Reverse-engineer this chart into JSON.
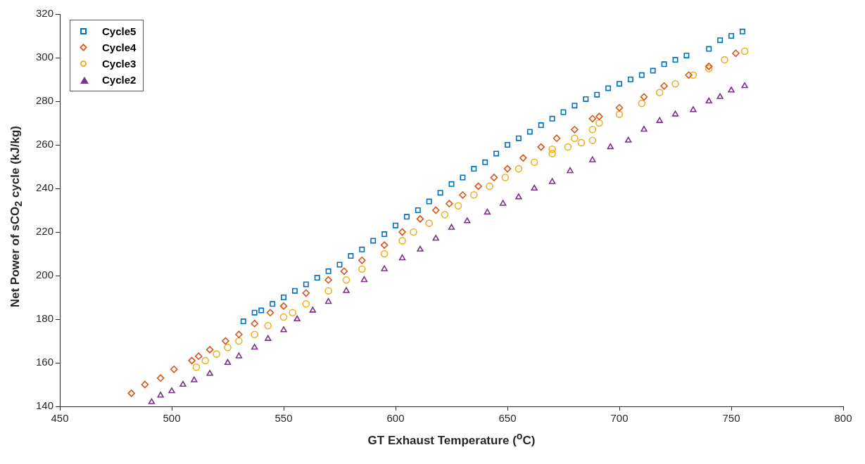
{
  "chart_data": {
    "type": "scatter",
    "xlabel": "GT Exhaust Temperature ($^{o}$C)",
    "ylabel": "Net Power of sCO$_{2}$ cycle (kJ/kg)",
    "xlim": [
      450,
      800
    ],
    "xticks": [
      450,
      500,
      550,
      600,
      650,
      700,
      750,
      800
    ],
    "ylim": [
      140,
      320
    ],
    "yticks": [
      140,
      160,
      180,
      200,
      220,
      240,
      260,
      280,
      300,
      320
    ],
    "grid": false,
    "legend": "top left",
    "series": [
      {
        "name": "Cycle5",
        "color": "#0072bd",
        "marker": "square",
        "x": [
          532,
          537,
          540,
          545,
          550,
          555,
          560,
          565,
          570,
          575,
          580,
          585,
          590,
          595,
          600,
          605,
          610,
          615,
          620,
          625,
          630,
          635,
          640,
          645,
          650,
          655,
          660,
          665,
          670,
          675,
          680,
          685,
          690,
          695,
          700,
          705,
          710,
          715,
          720,
          725,
          730,
          740,
          745,
          750,
          755
        ],
        "values": [
          179,
          183,
          184,
          187,
          190,
          193,
          196,
          199,
          202,
          205,
          209,
          212,
          216,
          219,
          223,
          227,
          230,
          234,
          238,
          242,
          245,
          249,
          252,
          256,
          260,
          263,
          266,
          269,
          272,
          275,
          278,
          281,
          283,
          286,
          288,
          290,
          292,
          294,
          297,
          299,
          301,
          304,
          308,
          310,
          312
        ]
      },
      {
        "name": "Cycle4",
        "color": "#d95319",
        "marker": "diamond",
        "x": [
          482,
          488,
          495,
          501,
          509,
          512,
          517,
          524,
          530,
          537,
          544,
          550,
          560,
          570,
          577,
          585,
          595,
          603,
          611,
          618,
          624,
          630,
          637,
          644,
          650,
          657,
          665,
          672,
          680,
          688,
          691,
          700,
          711,
          720,
          731,
          740,
          752
        ],
        "values": [
          146,
          150,
          153,
          157,
          161,
          163,
          166,
          170,
          173,
          178,
          183,
          186,
          192,
          198,
          202,
          207,
          214,
          220,
          226,
          230,
          233,
          237,
          241,
          245,
          249,
          254,
          259,
          263,
          267,
          272,
          273,
          277,
          282,
          287,
          292,
          296,
          302
        ]
      },
      {
        "name": "Cycle3",
        "color": "#edb120",
        "marker": "circle",
        "x": [
          511,
          515,
          520,
          525,
          530,
          537,
          543,
          550,
          554,
          560,
          570,
          578,
          585,
          595,
          603,
          608,
          615,
          622,
          628,
          635,
          642,
          649,
          655,
          662,
          670,
          677,
          683,
          688,
          670,
          680,
          688,
          691,
          700,
          710,
          718,
          725,
          733,
          740,
          747,
          756
        ],
        "values": [
          158,
          161,
          164,
          167,
          170,
          173,
          177,
          181,
          183,
          187,
          193,
          198,
          203,
          210,
          216,
          220,
          224,
          228,
          232,
          237,
          241,
          245,
          249,
          252,
          256,
          259,
          261,
          262,
          258,
          263,
          267,
          270,
          274,
          279,
          284,
          288,
          292,
          295,
          299,
          303
        ]
      },
      {
        "name": "Cycle2",
        "color": "#7e2f8e",
        "marker": "triangle",
        "x": [
          491,
          495,
          500,
          505,
          510,
          517,
          525,
          530,
          537,
          543,
          550,
          556,
          563,
          570,
          578,
          586,
          595,
          603,
          611,
          618,
          625,
          632,
          641,
          648,
          655,
          662,
          670,
          678,
          688,
          696,
          704,
          711,
          718,
          725,
          733,
          740,
          745,
          750,
          756
        ],
        "values": [
          142,
          145,
          147,
          150,
          152,
          155,
          160,
          163,
          167,
          171,
          175,
          180,
          184,
          188,
          193,
          198,
          203,
          208,
          212,
          217,
          222,
          225,
          229,
          233,
          236,
          240,
          243,
          248,
          253,
          259,
          262,
          267,
          271,
          274,
          276,
          280,
          282,
          285,
          287
        ]
      }
    ]
  }
}
